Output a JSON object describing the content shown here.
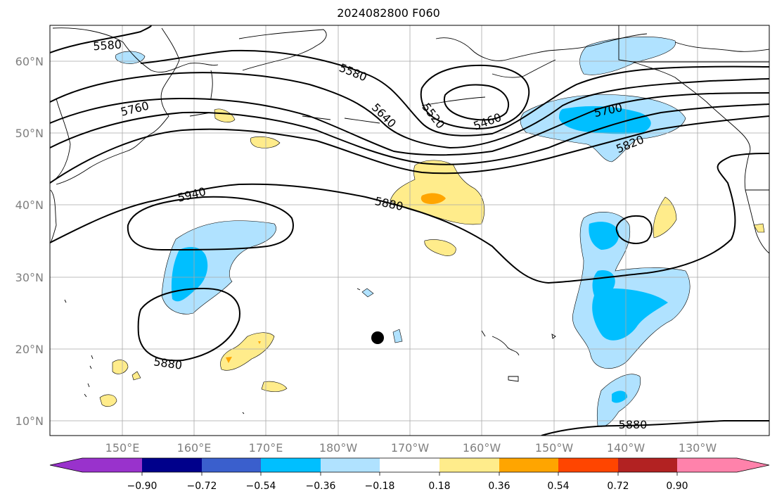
{
  "title": "2024082800 F060",
  "map": {
    "lon_range": [
      140,
      240
    ],
    "lat_range": [
      8,
      65
    ],
    "lat_labels": [
      "60°N",
      "50°N",
      "40°N",
      "30°N",
      "20°N",
      "10°N"
    ],
    "lon_labels": [
      "150°E",
      "160°E",
      "170°E",
      "180°W",
      "170°W",
      "160°W",
      "150°W",
      "140°W",
      "130°W"
    ],
    "contour_labels": [
      "5580",
      "5580",
      "5760",
      "5640",
      "5520",
      "5460",
      "5700",
      "5820",
      "5940",
      "5880",
      "5880",
      "5880"
    ],
    "marker": "filled-circle"
  },
  "colorbar": {
    "tick_labels": [
      "−0.90",
      "−0.72",
      "−0.54",
      "−0.36",
      "−0.18",
      "0.18",
      "0.36",
      "0.54",
      "0.72",
      "0.90"
    ],
    "colors": [
      "#9932cc",
      "#00008b",
      "#3a5fcd",
      "#00bfff",
      "#b0e2ff",
      "#ffffff",
      "#ffec8b",
      "#ffa500",
      "#ff4500",
      "#b22222",
      "#ff82ab"
    ]
  }
}
